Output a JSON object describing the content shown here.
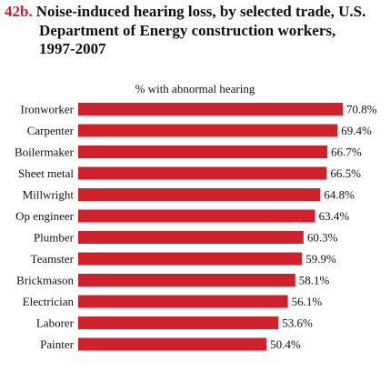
{
  "figure": {
    "number": "42b.",
    "title_lines": [
      "Noise-induced hearing loss, by selected trade, U.S.",
      "Department of Energy construction workers,",
      "1997-2007"
    ]
  },
  "colors": {
    "bar": "#d0202b",
    "number": "#d0202b"
  },
  "chart_data": {
    "type": "bar",
    "orientation": "horizontal",
    "title": "Noise-induced hearing loss, by selected trade, U.S. Department of Energy construction workers, 1997-2007",
    "subtitle": "% with abnormal hearing",
    "categories": [
      "Ironworker",
      "Carpenter",
      "Boilermaker",
      "Sheet metal",
      "Millwright",
      "Op engineer",
      "Plumber",
      "Teamster",
      "Brickmason",
      "Electrician",
      "Laborer",
      "Painter"
    ],
    "values": [
      70.8,
      69.4,
      66.7,
      66.5,
      64.8,
      63.4,
      60.3,
      59.9,
      58.1,
      56.1,
      53.6,
      50.4
    ],
    "value_labels": [
      "70.8%",
      "69.4%",
      "66.7%",
      "66.5%",
      "64.8%",
      "63.4%",
      "60.3%",
      "59.9%",
      "58.1%",
      "56.1%",
      "53.6%",
      "50.4%"
    ],
    "xlim": [
      0,
      70.8
    ],
    "grid": false,
    "legend": "none"
  }
}
